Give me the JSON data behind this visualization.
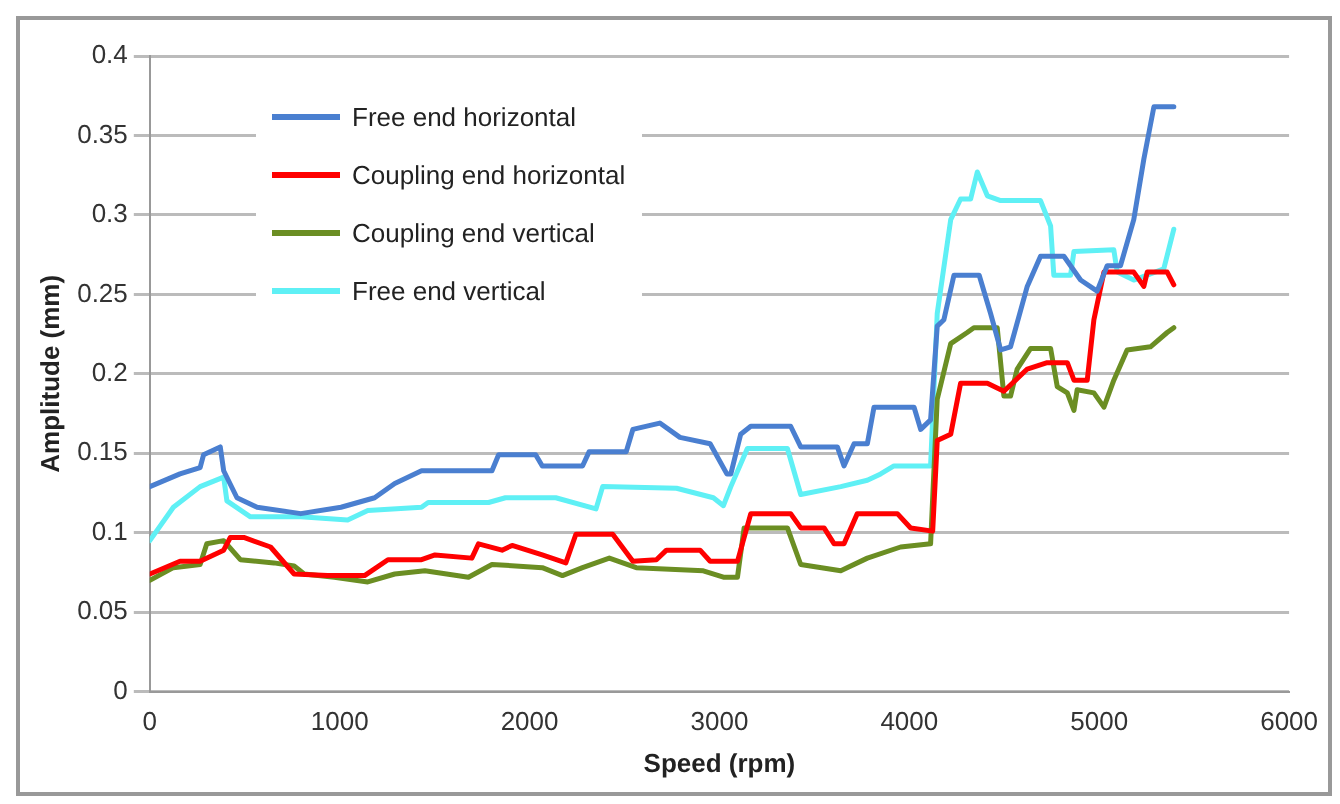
{
  "chart_data": {
    "type": "line",
    "xlabel": "Speed (rpm)",
    "ylabel": "Amplitude (mm)",
    "xlim": [
      0,
      6000
    ],
    "xticks": [
      0,
      1000,
      2000,
      3000,
      4000,
      5000,
      6000
    ],
    "ylim": [
      0,
      0.4
    ],
    "yticks": [
      0,
      0.05,
      0.1,
      0.15,
      0.2,
      0.25,
      0.3,
      0.35,
      0.4
    ],
    "grid": "y",
    "legend": "top left",
    "marker": "none",
    "line_style": "solid",
    "series": [
      {
        "name": "Free end horizontal",
        "color": "#4a7fd0",
        "x": [
          0,
          159,
          265,
          283,
          371,
          389,
          459,
          565,
          795,
          1007,
          1184,
          1290,
          1431,
          1802,
          1837,
          2032,
          2067,
          2279,
          2314,
          2509,
          2544,
          2686,
          2792,
          2951,
          3039,
          3060,
          3112,
          3165,
          3375,
          3428,
          3621,
          3656,
          3709,
          3779,
          3814,
          4025,
          4060,
          4112,
          4147,
          4182,
          4235,
          4368,
          4428,
          4481,
          4533,
          4621,
          4691,
          4814,
          4902,
          4989,
          5042,
          5112,
          5182,
          5235,
          5288,
          5393
        ],
        "values": [
          0.129,
          0.137,
          0.141,
          0.149,
          0.154,
          0.139,
          0.122,
          0.116,
          0.112,
          0.116,
          0.122,
          0.131,
          0.139,
          0.139,
          0.149,
          0.149,
          0.142,
          0.142,
          0.151,
          0.151,
          0.165,
          0.169,
          0.16,
          0.156,
          0.137,
          0.137,
          0.162,
          0.167,
          0.167,
          0.154,
          0.154,
          0.142,
          0.156,
          0.156,
          0.179,
          0.179,
          0.165,
          0.171,
          0.23,
          0.234,
          0.262,
          0.262,
          0.238,
          0.215,
          0.217,
          0.255,
          0.274,
          0.274,
          0.259,
          0.252,
          0.268,
          0.268,
          0.297,
          0.335,
          0.368,
          0.368
        ]
      },
      {
        "name": "Coupling end horizontal",
        "color": "#ff0000",
        "x": [
          0,
          159,
          265,
          389,
          424,
          495,
          636,
          760,
          936,
          1131,
          1254,
          1431,
          1502,
          1696,
          1731,
          1855,
          1908,
          2067,
          2191,
          2244,
          2438,
          2544,
          2668,
          2721,
          2898,
          2951,
          3007,
          3095,
          3165,
          3375,
          3428,
          3551,
          3604,
          3656,
          3726,
          3937,
          4007,
          4123,
          4147,
          4218,
          4270,
          4411,
          4498,
          4621,
          4726,
          4832,
          4867,
          4937,
          4972,
          5025,
          5182,
          5235,
          5253,
          5358,
          5393
        ],
        "values": [
          0.074,
          0.082,
          0.082,
          0.089,
          0.097,
          0.097,
          0.091,
          0.074,
          0.073,
          0.073,
          0.083,
          0.083,
          0.086,
          0.084,
          0.093,
          0.089,
          0.092,
          0.086,
          0.081,
          0.099,
          0.099,
          0.082,
          0.083,
          0.089,
          0.089,
          0.082,
          0.082,
          0.082,
          0.112,
          0.112,
          0.103,
          0.103,
          0.093,
          0.093,
          0.112,
          0.112,
          0.103,
          0.101,
          0.158,
          0.162,
          0.194,
          0.194,
          0.189,
          0.203,
          0.207,
          0.207,
          0.196,
          0.196,
          0.234,
          0.264,
          0.264,
          0.255,
          0.264,
          0.264,
          0.256
        ]
      },
      {
        "name": "Coupling end vertical",
        "color": "#6b8e23",
        "x": [
          0,
          124,
          265,
          300,
          389,
          477,
          654,
          760,
          813,
          972,
          1148,
          1290,
          1449,
          1678,
          1802,
          2067,
          2173,
          2279,
          2420,
          2562,
          2915,
          3021,
          3095,
          3130,
          3358,
          3428,
          3639,
          3779,
          3954,
          4112,
          4147,
          4218,
          4305,
          4340,
          4463,
          4498,
          4533,
          4568,
          4639,
          4744,
          4779,
          4832,
          4867,
          4884,
          4972,
          5025,
          5077,
          5147,
          5270,
          5358,
          5393
        ],
        "values": [
          0.07,
          0.078,
          0.08,
          0.093,
          0.095,
          0.083,
          0.081,
          0.079,
          0.074,
          0.072,
          0.069,
          0.074,
          0.076,
          0.072,
          0.08,
          0.078,
          0.073,
          0.078,
          0.084,
          0.078,
          0.076,
          0.072,
          0.072,
          0.103,
          0.103,
          0.08,
          0.076,
          0.084,
          0.091,
          0.093,
          0.184,
          0.219,
          0.226,
          0.229,
          0.229,
          0.186,
          0.186,
          0.203,
          0.216,
          0.216,
          0.192,
          0.188,
          0.177,
          0.19,
          0.188,
          0.179,
          0.196,
          0.215,
          0.217,
          0.226,
          0.229
        ]
      },
      {
        "name": "Free end vertical",
        "color": "#5ff0f5",
        "x": [
          0,
          124,
          265,
          389,
          406,
          530,
          795,
          1042,
          1148,
          1431,
          1466,
          1784,
          1873,
          2138,
          2350,
          2385,
          2774,
          2968,
          3021,
          3060,
          3147,
          3358,
          3428,
          3639,
          3779,
          3849,
          3919,
          4112,
          4147,
          4218,
          4270,
          4323,
          4358,
          4411,
          4481,
          4691,
          4744,
          4761,
          4849,
          4867,
          5077,
          5095,
          5182,
          5340,
          5393
        ],
        "values": [
          0.095,
          0.116,
          0.129,
          0.135,
          0.12,
          0.11,
          0.11,
          0.108,
          0.114,
          0.116,
          0.119,
          0.119,
          0.122,
          0.122,
          0.115,
          0.129,
          0.128,
          0.122,
          0.117,
          0.129,
          0.153,
          0.153,
          0.124,
          0.129,
          0.133,
          0.137,
          0.142,
          0.142,
          0.238,
          0.297,
          0.31,
          0.31,
          0.327,
          0.312,
          0.309,
          0.309,
          0.293,
          0.262,
          0.262,
          0.277,
          0.278,
          0.264,
          0.259,
          0.266,
          0.291
        ]
      }
    ]
  }
}
